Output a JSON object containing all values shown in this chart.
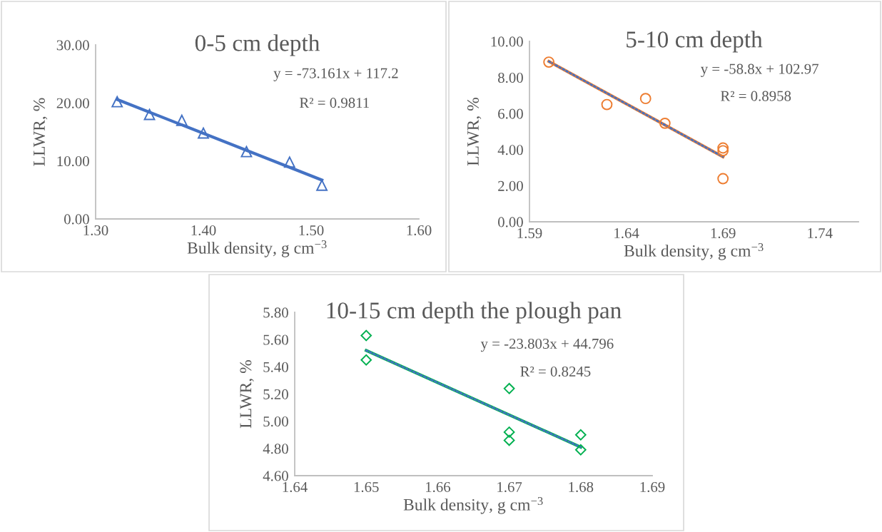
{
  "chart_data": [
    {
      "type": "scatter",
      "title": "0-5 cm depth",
      "xlabel": "Bulk density, g cm$^{−3}$",
      "ylabel": "LLWR, %",
      "annotations": [
        "y = -73.161x + 117.2",
        "R² = 0.9811"
      ],
      "xlim": [
        1.3,
        1.6
      ],
      "xticks": [
        {
          "value": 1.3,
          "label": "1.30"
        },
        {
          "value": 1.4,
          "label": "1.40"
        },
        {
          "value": 1.5,
          "label": "1.50"
        },
        {
          "value": 1.6,
          "label": "1.60"
        }
      ],
      "ylim": [
        0,
        30
      ],
      "yticks": [
        {
          "value": 0,
          "label": "0.00"
        },
        {
          "value": 10,
          "label": "10.00"
        },
        {
          "value": 20,
          "label": "20.00"
        },
        {
          "value": 30,
          "label": "30.00"
        }
      ],
      "grid": false,
      "legend": false,
      "series": [
        {
          "color": "#4472c4",
          "marker": "triangle",
          "x": [
            1.32,
            1.35,
            1.38,
            1.4,
            1.44,
            1.48,
            1.51
          ],
          "values": [
            20.2,
            18.0,
            17.0,
            14.8,
            11.6,
            9.8,
            5.8
          ]
        },
        {
          "type": "line",
          "color": "#4472c4",
          "marker": "none",
          "line_style": "solid",
          "x": [
            1.32,
            1.51
          ],
          "values": [
            20.6,
            6.7
          ]
        }
      ]
    },
    {
      "type": "scatter",
      "title": "5-10 cm depth",
      "xlabel": "Bulk density, g cm$^{−3}$",
      "ylabel": "LLWR, %",
      "annotations": [
        "y = -58.8x + 102.97",
        "R² = 0.8958"
      ],
      "xlim": [
        1.59,
        1.76
      ],
      "xticks": [
        {
          "value": 1.59,
          "label": "1.59"
        },
        {
          "value": 1.64,
          "label": "1.64"
        },
        {
          "value": 1.69,
          "label": "1.69"
        },
        {
          "value": 1.74,
          "label": "1.74"
        }
      ],
      "ylim": [
        0,
        10
      ],
      "yticks": [
        {
          "value": 0,
          "label": "0.00"
        },
        {
          "value": 2,
          "label": "2.00"
        },
        {
          "value": 4,
          "label": "4.00"
        },
        {
          "value": 6,
          "label": "6.00"
        },
        {
          "value": 8,
          "label": "8.00"
        },
        {
          "value": 10,
          "label": "10.00"
        }
      ],
      "grid": false,
      "legend": false,
      "series": [
        {
          "type": "line",
          "color": "#ed7d31",
          "marker": "none",
          "line_style": "solid",
          "x": [
            1.6,
            1.69
          ],
          "values": [
            8.89,
            3.6
          ]
        },
        {
          "type": "line",
          "color": "#4472c4",
          "marker": "none",
          "line_style": "dotted",
          "x": [
            1.6,
            1.69
          ],
          "values": [
            8.89,
            3.6
          ]
        },
        {
          "color": "#ed7d31",
          "marker": "circle",
          "x": [
            1.6,
            1.63,
            1.65,
            1.66,
            1.69,
            1.69,
            1.69
          ],
          "values": [
            8.85,
            6.5,
            6.83,
            5.46,
            4.09,
            3.94,
            2.39
          ]
        }
      ]
    },
    {
      "type": "scatter",
      "title": "10-15 cm depth the plough pan",
      "xlabel": "Bulk density, g cm$^{−3}$",
      "ylabel": "LLWR, %",
      "annotations": [
        "y = -23.803x + 44.796",
        "R² = 0.8245"
      ],
      "xlim": [
        1.64,
        1.69
      ],
      "xticks": [
        {
          "value": 1.64,
          "label": "1.64"
        },
        {
          "value": 1.65,
          "label": "1.65"
        },
        {
          "value": 1.66,
          "label": "1.66"
        },
        {
          "value": 1.67,
          "label": "1.67"
        },
        {
          "value": 1.68,
          "label": "1.68"
        },
        {
          "value": 1.69,
          "label": "1.69"
        }
      ],
      "ylim": [
        4.6,
        5.8
      ],
      "yticks": [
        {
          "value": 4.6,
          "label": "4.60"
        },
        {
          "value": 4.8,
          "label": "4.80"
        },
        {
          "value": 5.0,
          "label": "5.00"
        },
        {
          "value": 5.2,
          "label": "5.20"
        },
        {
          "value": 5.4,
          "label": "5.40"
        },
        {
          "value": 5.6,
          "label": "5.60"
        },
        {
          "value": 5.8,
          "label": "5.80"
        }
      ],
      "grid": false,
      "legend": false,
      "series": [
        {
          "type": "line",
          "color": "#00b050",
          "marker": "none",
          "line_style": "solid",
          "x": [
            1.65,
            1.68
          ],
          "values": [
            5.52,
            4.81
          ]
        },
        {
          "type": "line",
          "color": "#4472c4",
          "marker": "none",
          "line_style": "dotted",
          "x": [
            1.65,
            1.68
          ],
          "values": [
            5.52,
            4.81
          ]
        },
        {
          "color": "#00b050",
          "marker": "diamond",
          "x": [
            1.65,
            1.65,
            1.67,
            1.67,
            1.67,
            1.68,
            1.68
          ],
          "values": [
            5.63,
            5.45,
            5.24,
            4.92,
            4.86,
            4.9,
            4.79
          ]
        }
      ]
    }
  ]
}
